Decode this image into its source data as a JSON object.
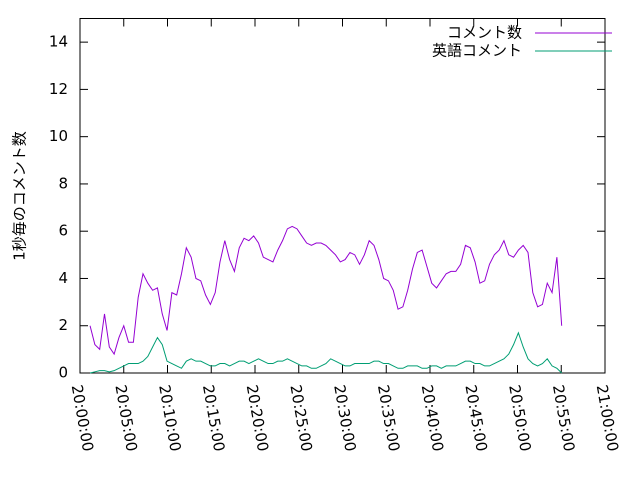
{
  "chart_data": {
    "type": "line",
    "ylabel": "1秒毎のコメント数",
    "x": [
      "20:01:09",
      "20:01:42",
      "20:02:15",
      "20:02:48",
      "20:03:21",
      "20:03:54",
      "20:04:27",
      "20:05:00",
      "20:05:33",
      "20:06:06",
      "20:06:39",
      "20:07:12",
      "20:07:45",
      "20:08:18",
      "20:08:51",
      "20:09:24",
      "20:09:57",
      "20:10:30",
      "20:11:03",
      "20:11:36",
      "20:12:09",
      "20:12:42",
      "20:13:15",
      "20:13:48",
      "20:14:21",
      "20:14:54",
      "20:15:27",
      "20:16:00",
      "20:16:33",
      "20:17:06",
      "20:17:39",
      "20:18:12",
      "20:18:45",
      "20:19:18",
      "20:19:51",
      "20:20:24",
      "20:20:57",
      "20:21:30",
      "20:22:03",
      "20:22:36",
      "20:23:09",
      "20:23:42",
      "20:24:15",
      "20:24:48",
      "20:25:21",
      "20:25:54",
      "20:26:27",
      "20:27:00",
      "20:27:33",
      "20:28:06",
      "20:28:39",
      "20:29:12",
      "20:29:45",
      "20:30:18",
      "20:30:51",
      "20:31:24",
      "20:31:57",
      "20:32:30",
      "20:33:03",
      "20:33:36",
      "20:34:09",
      "20:34:42",
      "20:35:15",
      "20:35:48",
      "20:36:21",
      "20:36:54",
      "20:37:27",
      "20:38:00",
      "20:38:33",
      "20:39:06",
      "20:39:39",
      "20:40:12",
      "20:40:45",
      "20:41:18",
      "20:41:51",
      "20:42:24",
      "20:42:57",
      "20:43:30",
      "20:44:03",
      "20:44:36",
      "20:45:09",
      "20:45:42",
      "20:46:15",
      "20:46:48",
      "20:47:21",
      "20:47:54",
      "20:48:27",
      "20:49:00",
      "20:49:33",
      "20:50:06",
      "20:50:39",
      "20:51:12",
      "20:51:45",
      "20:52:18",
      "20:52:51",
      "20:53:24",
      "20:53:57",
      "20:54:30",
      "20:55:03"
    ],
    "series": [
      {
        "name": "コメント数",
        "color": "#9400d3",
        "values": [
          2.0,
          1.2,
          1.0,
          2.5,
          1.1,
          0.8,
          1.5,
          2.0,
          1.3,
          1.3,
          3.2,
          4.2,
          3.8,
          3.5,
          3.6,
          2.5,
          1.8,
          3.4,
          3.3,
          4.2,
          5.3,
          4.9,
          4.0,
          3.9,
          3.3,
          2.9,
          3.4,
          4.7,
          5.6,
          4.8,
          4.3,
          5.3,
          5.7,
          5.6,
          5.8,
          5.5,
          4.9,
          4.8,
          4.7,
          5.2,
          5.6,
          6.1,
          6.2,
          6.1,
          5.8,
          5.5,
          5.4,
          5.5,
          5.5,
          5.4,
          5.2,
          5.0,
          4.7,
          4.8,
          5.1,
          5.0,
          4.6,
          5.0,
          5.6,
          5.4,
          4.8,
          4.0,
          3.9,
          3.5,
          2.7,
          2.8,
          3.5,
          4.4,
          5.1,
          5.2,
          4.5,
          3.8,
          3.6,
          3.9,
          4.2,
          4.3,
          4.3,
          4.6,
          5.4,
          5.3,
          4.7,
          3.8,
          3.9,
          4.6,
          5.0,
          5.2,
          5.6,
          5.0,
          4.9,
          5.2,
          5.4,
          5.1,
          3.4,
          2.8,
          2.9,
          3.8,
          3.4,
          4.9,
          2.0
        ]
      },
      {
        "name": "英語コメント",
        "color": "#009e73",
        "values": [
          0.0,
          0.05,
          0.1,
          0.1,
          0.05,
          0.1,
          0.2,
          0.3,
          0.4,
          0.4,
          0.4,
          0.5,
          0.7,
          1.1,
          1.5,
          1.2,
          0.5,
          0.4,
          0.3,
          0.2,
          0.5,
          0.6,
          0.5,
          0.5,
          0.4,
          0.3,
          0.3,
          0.4,
          0.4,
          0.3,
          0.4,
          0.5,
          0.5,
          0.4,
          0.5,
          0.6,
          0.5,
          0.4,
          0.4,
          0.5,
          0.5,
          0.6,
          0.5,
          0.4,
          0.3,
          0.3,
          0.2,
          0.2,
          0.3,
          0.4,
          0.6,
          0.5,
          0.4,
          0.3,
          0.3,
          0.4,
          0.4,
          0.4,
          0.4,
          0.5,
          0.5,
          0.4,
          0.4,
          0.3,
          0.2,
          0.2,
          0.3,
          0.3,
          0.3,
          0.2,
          0.2,
          0.3,
          0.3,
          0.2,
          0.3,
          0.3,
          0.3,
          0.4,
          0.5,
          0.5,
          0.4,
          0.4,
          0.3,
          0.3,
          0.4,
          0.5,
          0.6,
          0.8,
          1.2,
          1.7,
          1.1,
          0.6,
          0.4,
          0.3,
          0.4,
          0.6,
          0.3,
          0.2,
          0.0
        ]
      }
    ],
    "xlim": [
      "20:00:00",
      "21:00:00"
    ],
    "xticks": [
      "20:00:00",
      "20:05:00",
      "20:10:00",
      "20:15:00",
      "20:20:00",
      "20:25:00",
      "20:30:00",
      "20:35:00",
      "20:40:00",
      "20:45:00",
      "20:50:00",
      "20:55:00",
      "21:00:00"
    ],
    "ylim": [
      0,
      15
    ],
    "yticks": [
      0,
      2,
      4,
      6,
      8,
      10,
      12,
      14
    ],
    "legend": "top-right"
  }
}
